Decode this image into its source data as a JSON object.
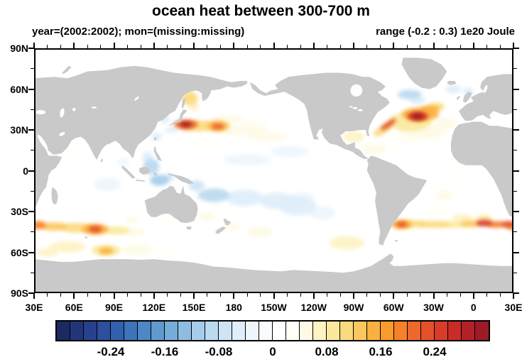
{
  "header": {
    "title": "ocean heat between 300-700 m",
    "subtitle_left": "year=(2002:2002); mon=(missing:missing)",
    "subtitle_right": "range (-0.2 : 0.3) 1e20 Joule"
  },
  "chart_data": {
    "type": "heatmap",
    "projection": "cylindrical-equidistant-pacific-centered",
    "title": "ocean heat between 300-700 m",
    "units": "1e20 Joule",
    "value_range": [
      -0.2,
      0.3
    ],
    "land_color": "#c9c9c9",
    "ocean_color": "#ffffff",
    "lat_axis": {
      "ticks": [
        {
          "lat": 90,
          "label": "90N"
        },
        {
          "lat": 60,
          "label": "60N"
        },
        {
          "lat": 30,
          "label": "30N"
        },
        {
          "lat": 0,
          "label": "0"
        },
        {
          "lat": -30,
          "label": "30S"
        },
        {
          "lat": -60,
          "label": "60S"
        },
        {
          "lat": -90,
          "label": "90S"
        }
      ],
      "minor_step_deg": 15
    },
    "lon_axis": {
      "ticks": [
        {
          "lon": 30,
          "label": "30E"
        },
        {
          "lon": 60,
          "label": "60E"
        },
        {
          "lon": 90,
          "label": "90E"
        },
        {
          "lon": 120,
          "label": "120E"
        },
        {
          "lon": 150,
          "label": "150E"
        },
        {
          "lon": 180,
          "label": "180"
        },
        {
          "lon": 210,
          "label": "150W"
        },
        {
          "lon": 240,
          "label": "120W"
        },
        {
          "lon": 270,
          "label": "90W"
        },
        {
          "lon": 300,
          "label": "60W"
        },
        {
          "lon": 330,
          "label": "30W"
        },
        {
          "lon": 360,
          "label": "0"
        },
        {
          "lon": 390,
          "label": "30E"
        }
      ],
      "minor_step_deg": 10
    },
    "colorbar": {
      "labels": [
        "-0.24",
        "-0.16",
        "-0.08",
        "0",
        "0.08",
        "0.16",
        "0.24"
      ],
      "label_values": [
        -0.24,
        -0.16,
        -0.08,
        0,
        0.08,
        0.16,
        0.24
      ],
      "level_min": -0.3,
      "level_max": 0.3,
      "step": 0.02,
      "colors": [
        "#1c2a62",
        "#23357a",
        "#27418c",
        "#2c4f9e",
        "#3260ac",
        "#3d74ba",
        "#4d87c4",
        "#609ace",
        "#76acd8",
        "#8ebde2",
        "#a5cdea",
        "#bbdaf0",
        "#cfe5f5",
        "#dfeefa",
        "#eef6fc",
        "#f9fcfe",
        "#ffffff",
        "#fffef8",
        "#fefae6",
        "#fdf3c4",
        "#fae99c",
        "#fbda7e",
        "#fcc75e",
        "#fbb040",
        "#f99a2c",
        "#f5822a",
        "#ee682b",
        "#e4512a",
        "#d83c28",
        "#c92c26",
        "#b22127",
        "#9c1b27"
      ]
    },
    "anomalies": [
      {
        "lon": 147,
        "lat": 53,
        "rx": 6,
        "ry": 5,
        "v": 0.1
      },
      {
        "lon": 145,
        "lat": 57,
        "rx": 3,
        "ry": 2.5,
        "v": 0.07
      },
      {
        "lon": 150,
        "lat": 47,
        "rx": 4,
        "ry": 3,
        "v": 0.06
      },
      {
        "lon": 144,
        "lat": 34,
        "rx": 9,
        "ry": 3.5,
        "v": 0.2
      },
      {
        "lon": 144,
        "lat": 34,
        "rx": 4.5,
        "ry": 2,
        "v": 0.3
      },
      {
        "lon": 153,
        "lat": 33,
        "rx": 14,
        "ry": 4,
        "v": 0.1
      },
      {
        "lon": 168,
        "lat": 33,
        "rx": 9,
        "ry": 4,
        "v": 0.12
      },
      {
        "lon": 168,
        "lat": 32.5,
        "rx": 5,
        "ry": 2.5,
        "v": 0.2
      },
      {
        "lon": 185,
        "lat": 30,
        "rx": 22,
        "ry": 4,
        "v": 0.05
      },
      {
        "lon": 205,
        "lat": 25,
        "rx": 16,
        "ry": 3,
        "v": 0.05
      },
      {
        "lon": 175,
        "lat": 38,
        "rx": 12,
        "ry": 3,
        "v": 0.05
      },
      {
        "lon": 196,
        "lat": 36,
        "rx": 10,
        "ry": 3,
        "v": 0.04
      },
      {
        "lon": 160,
        "lat": 20,
        "rx": 12,
        "ry": 3,
        "v": 0.04
      },
      {
        "lon": 133,
        "lat": 30,
        "rx": 5,
        "ry": 2,
        "v": -0.06
      },
      {
        "lon": 128,
        "lat": 38,
        "rx": 4,
        "ry": 3,
        "v": -0.05
      },
      {
        "lon": 122,
        "lat": 25,
        "rx": 4,
        "ry": 3,
        "v": -0.05
      },
      {
        "lon": 118,
        "lat": 3,
        "rx": 6,
        "ry": 6,
        "v": -0.09
      },
      {
        "lon": 124,
        "lat": -7,
        "rx": 7,
        "ry": 4,
        "v": -0.1
      },
      {
        "lon": 115,
        "lat": 10,
        "rx": 4,
        "ry": 4,
        "v": -0.06
      },
      {
        "lon": 131,
        "lat": -5,
        "rx": 4,
        "ry": 3,
        "v": -0.07
      },
      {
        "lon": 190,
        "lat": 8,
        "rx": 18,
        "ry": 4,
        "v": -0.04
      },
      {
        "lon": 222,
        "lat": 14,
        "rx": 14,
        "ry": 4,
        "v": -0.03
      },
      {
        "lon": 165,
        "lat": -18,
        "rx": 12,
        "ry": 5,
        "v": -0.08
      },
      {
        "lon": 188,
        "lat": -20,
        "rx": 14,
        "ry": 6,
        "v": -0.06
      },
      {
        "lon": 212,
        "lat": -22,
        "rx": 13,
        "ry": 6,
        "v": -0.05
      },
      {
        "lon": 152,
        "lat": -11,
        "rx": 6,
        "ry": 4,
        "v": -0.07
      },
      {
        "lon": 230,
        "lat": -20,
        "rx": 10,
        "ry": 4,
        "v": -0.04
      },
      {
        "lon": 228,
        "lat": -26,
        "rx": 14,
        "ry": 7,
        "v": -0.06
      },
      {
        "lon": 246,
        "lat": -31,
        "rx": 10,
        "ry": 5,
        "v": -0.04
      },
      {
        "lon": 265,
        "lat": -53,
        "rx": 13,
        "ry": 5,
        "v": 0.06
      },
      {
        "lon": 200,
        "lat": -45,
        "rx": 10,
        "ry": 4,
        "v": 0.05
      },
      {
        "lon": 178,
        "lat": -41,
        "rx": 7,
        "ry": 3,
        "v": 0.05
      },
      {
        "lon": 160,
        "lat": -34,
        "rx": 6,
        "ry": 3,
        "v": 0.05
      },
      {
        "lon": 172,
        "lat": -30,
        "rx": 5,
        "ry": 3,
        "v": 0.04
      },
      {
        "lon": 33,
        "lat": -40,
        "rx": 6,
        "ry": 3,
        "v": 0.18
      },
      {
        "lon": 45,
        "lat": -41,
        "rx": 10,
        "ry": 3,
        "v": 0.12
      },
      {
        "lon": 62,
        "lat": -42,
        "rx": 12,
        "ry": 3.5,
        "v": 0.1
      },
      {
        "lon": 76,
        "lat": -43,
        "rx": 10,
        "ry": 4,
        "v": 0.14
      },
      {
        "lon": 76,
        "lat": -43,
        "rx": 5,
        "ry": 2.5,
        "v": 0.22
      },
      {
        "lon": 92,
        "lat": -44,
        "rx": 10,
        "ry": 3,
        "v": 0.08
      },
      {
        "lon": 106,
        "lat": -45,
        "rx": 8,
        "ry": 3,
        "v": 0.05
      },
      {
        "lon": 103,
        "lat": -36,
        "rx": 5,
        "ry": 2.5,
        "v": 0.05
      },
      {
        "lon": 128,
        "lat": -38,
        "rx": 6,
        "ry": 3,
        "v": 0.04
      },
      {
        "lon": 55,
        "lat": -56,
        "rx": 14,
        "ry": 4,
        "v": 0.07
      },
      {
        "lon": 84,
        "lat": -58.5,
        "rx": 11,
        "ry": 4,
        "v": 0.08
      },
      {
        "lon": 84,
        "lat": -59,
        "rx": 5.5,
        "ry": 2.5,
        "v": 0.15
      },
      {
        "lon": 108,
        "lat": -58,
        "rx": 11,
        "ry": 4,
        "v": 0.05
      },
      {
        "lon": 40,
        "lat": -60,
        "rx": 8,
        "ry": 3,
        "v": 0.06
      },
      {
        "lon": 130,
        "lat": -60,
        "rx": 10,
        "ry": 3,
        "v": 0.04
      },
      {
        "lon": 63,
        "lat": 13,
        "rx": 5,
        "ry": 3,
        "v": 0.04
      },
      {
        "lon": 85,
        "lat": -10,
        "rx": 10,
        "ry": 5,
        "v": -0.03
      },
      {
        "lon": 97,
        "lat": 6,
        "rx": 4,
        "ry": 3,
        "v": -0.04
      },
      {
        "lon": 318,
        "lat": 40,
        "rx": 8,
        "ry": 3.5,
        "v": 0.24
      },
      {
        "lon": 318,
        "lat": 40,
        "rx": 4.5,
        "ry": 2.2,
        "v": 0.3
      },
      {
        "lon": 320,
        "lat": 41.5,
        "rx": 14,
        "ry": 5,
        "v": 0.16
      },
      {
        "lon": 327,
        "lat": 45,
        "rx": 7,
        "ry": 3,
        "v": 0.14
      },
      {
        "lon": 332,
        "lat": 47,
        "rx": 6,
        "ry": 3,
        "v": 0.1
      },
      {
        "lon": 312,
        "lat": 36,
        "rx": 16,
        "ry": 7,
        "v": 0.08
      },
      {
        "lon": 322,
        "lat": 30,
        "rx": 18,
        "ry": 7,
        "v": 0.05
      },
      {
        "lon": 296,
        "lat": 34,
        "rx": 7,
        "ry": 2,
        "v": 0.22,
        "rot": -35
      },
      {
        "lon": 292,
        "lat": 30,
        "rx": 8,
        "ry": 3,
        "v": 0.1,
        "rot": -30
      },
      {
        "lon": 270,
        "lat": 25,
        "rx": 8,
        "ry": 4,
        "v": 0.07
      },
      {
        "lon": 285,
        "lat": 16,
        "rx": 10,
        "ry": 4,
        "v": 0.05
      },
      {
        "lon": 305,
        "lat": 22,
        "rx": 10,
        "ry": 5,
        "v": 0.04
      },
      {
        "lon": 340,
        "lat": 35,
        "rx": 8,
        "ry": 4,
        "v": 0.05
      },
      {
        "lon": 312,
        "lat": 56,
        "rx": 9,
        "ry": 3.5,
        "v": -0.08
      },
      {
        "lon": 318,
        "lat": 52,
        "rx": 6,
        "ry": 3,
        "v": -0.06
      },
      {
        "lon": 345,
        "lat": 60,
        "rx": 6,
        "ry": 3,
        "v": -0.05
      },
      {
        "lon": 356,
        "lat": 58,
        "rx": 4,
        "ry": 3,
        "v": -0.05
      },
      {
        "lon": 345,
        "lat": -3,
        "rx": 8,
        "ry": 4,
        "v": 0.04
      },
      {
        "lon": 338,
        "lat": -18,
        "rx": 6,
        "ry": 4,
        "v": 0.05
      },
      {
        "lon": 343,
        "lat": 8,
        "rx": 6,
        "ry": 3,
        "v": 0.04
      },
      {
        "lon": 306,
        "lat": -39.5,
        "rx": 8,
        "ry": 3.5,
        "v": 0.14
      },
      {
        "lon": 306,
        "lat": -39.5,
        "rx": 4,
        "ry": 2,
        "v": 0.22
      },
      {
        "lon": 315,
        "lat": -39,
        "rx": 10,
        "ry": 2.5,
        "v": 0.1
      },
      {
        "lon": 330,
        "lat": -39.5,
        "rx": 12,
        "ry": 2.5,
        "v": 0.1
      },
      {
        "lon": 345,
        "lat": -39.5,
        "rx": 10,
        "ry": 2.5,
        "v": 0.08
      },
      {
        "lon": 358,
        "lat": -39,
        "rx": 8,
        "ry": 2.5,
        "v": 0.12
      },
      {
        "lon": 368,
        "lat": -38.5,
        "rx": 6,
        "ry": 2.5,
        "v": 0.25
      },
      {
        "lon": 377,
        "lat": -39.5,
        "rx": 7,
        "ry": 2.5,
        "v": 0.18
      },
      {
        "lon": 386,
        "lat": -39.5,
        "rx": 5,
        "ry": 2.5,
        "v": 0.22
      },
      {
        "lon": 390,
        "lat": -41,
        "rx": 5,
        "ry": 3,
        "v": 0.14
      },
      {
        "lon": 352,
        "lat": -35,
        "rx": 8,
        "ry": 3,
        "v": 0.06
      },
      {
        "lon": 368,
        "lat": -35,
        "rx": 6,
        "ry": 2.5,
        "v": 0.08
      },
      {
        "lon": 332,
        "lat": -30,
        "rx": 10,
        "ry": 5,
        "v": 0.03
      }
    ]
  }
}
